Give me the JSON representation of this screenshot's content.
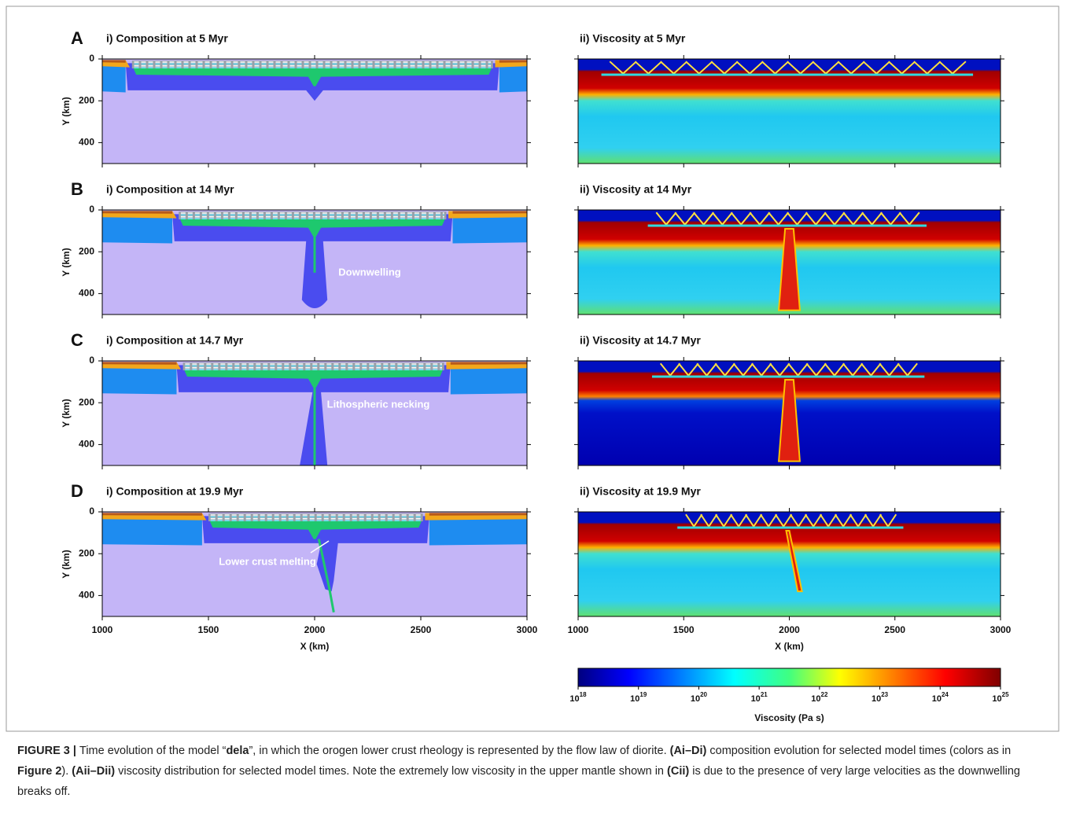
{
  "panels": [
    {
      "letter": "A",
      "composition_title": "i) Composition at 5 Myr",
      "viscosity_title": "ii) Viscosity at 5 Myr"
    },
    {
      "letter": "B",
      "composition_title": "i) Composition at 14 Myr",
      "viscosity_title": "ii) Viscosity at 14 Myr",
      "annotation": "Downwelling"
    },
    {
      "letter": "C",
      "composition_title": "i) Composition at 14.7 Myr",
      "viscosity_title": "ii) Viscosity at 14.7 Myr",
      "annotation": "Lithospheric necking"
    },
    {
      "letter": "D",
      "composition_title": "i) Composition at 19.9 Myr",
      "viscosity_title": "ii) Viscosity at 19.9 Myr",
      "annotation": "Lower crust melting"
    }
  ],
  "axes": {
    "y_label": "Y (km)",
    "x_label": "X (km)",
    "ylim": [
      0,
      500
    ],
    "yticks": [
      0,
      200,
      400
    ],
    "xlim": [
      1000,
      3000
    ],
    "xticks": [
      1000,
      1500,
      2000,
      2500,
      3000
    ]
  },
  "colorbar": {
    "label": "Viscosity (Pa s)",
    "ticks": [
      {
        "base": "10",
        "exp": "18"
      },
      {
        "base": "10",
        "exp": "19"
      },
      {
        "base": "10",
        "exp": "20"
      },
      {
        "base": "10",
        "exp": "21"
      },
      {
        "base": "10",
        "exp": "22"
      },
      {
        "base": "10",
        "exp": "23"
      },
      {
        "base": "10",
        "exp": "24"
      },
      {
        "base": "10",
        "exp": "25"
      }
    ]
  },
  "caption": [
    {
      "text": "FIGURE 3 | ",
      "bold": true
    },
    {
      "text": "Time evolution of the model “",
      "bold": false
    },
    {
      "text": "dela",
      "bold": true
    },
    {
      "text": "”, in which the orogen lower crust rheology is represented by the flow law of diorite. ",
      "bold": false
    },
    {
      "text": "(Ai–Di)",
      "bold": true
    },
    {
      "text": " composition evolution for selected model times (colors as in ",
      "bold": false
    },
    {
      "text": "Figure 2",
      "bold": true
    },
    {
      "text": "). ",
      "bold": false
    },
    {
      "text": "(Aii–Dii)",
      "bold": true
    },
    {
      "text": " viscosity distribution for selected model times. Note the extremely low viscosity in the upper mantle shown in ",
      "bold": false
    },
    {
      "text": "(Cii)",
      "bold": true
    },
    {
      "text": " is due to the presence of very large velocities as the downwelling breaks off.",
      "bold": false
    }
  ]
}
